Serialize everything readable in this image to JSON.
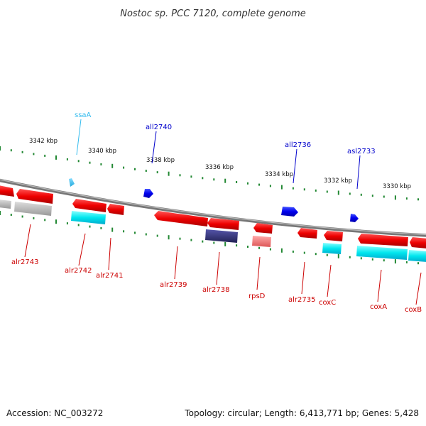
{
  "title": "Nostoc sp. PCC 7120, complete genome",
  "footer": {
    "accession": "Accession: NC_003272",
    "summary": "Topology: circular; Length: 6,413,771 bp; Genes: 5,428"
  },
  "ticks": [
    "3342 kbp",
    "3340 kbp",
    "3338 kbp",
    "3336 kbp",
    "3334 kbp",
    "3332 kbp",
    "3330 kbp"
  ],
  "upper_genes": [
    {
      "label": "ssaA",
      "color": "#33bbee"
    },
    {
      "label": "all2740",
      "color": "#0000cc"
    },
    {
      "label": "all2736",
      "color": "#0000cc"
    },
    {
      "label": "asl2733",
      "color": "#0000cc"
    }
  ],
  "lower_genes": [
    {
      "label": "alr2743"
    },
    {
      "label": "alr2742"
    },
    {
      "label": "alr2741"
    },
    {
      "label": "alr2739"
    },
    {
      "label": "alr2738"
    },
    {
      "label": "rpsD"
    },
    {
      "label": "alr2735"
    },
    {
      "label": "coxC"
    },
    {
      "label": "coxA"
    },
    {
      "label": "coxB"
    }
  ],
  "colors": {
    "forward_gene": "#ee1111",
    "reverse_gene": "#0000ee",
    "rna_light_blue": "#44ccee",
    "cyan_feature": "#00eeee",
    "navy_feature": "#333377",
    "pink_feature": "#ee7777",
    "gray_feature": "#bbbbbb",
    "backbone": "#888888",
    "tick": "#228833",
    "lower_label": "#cc0000"
  }
}
